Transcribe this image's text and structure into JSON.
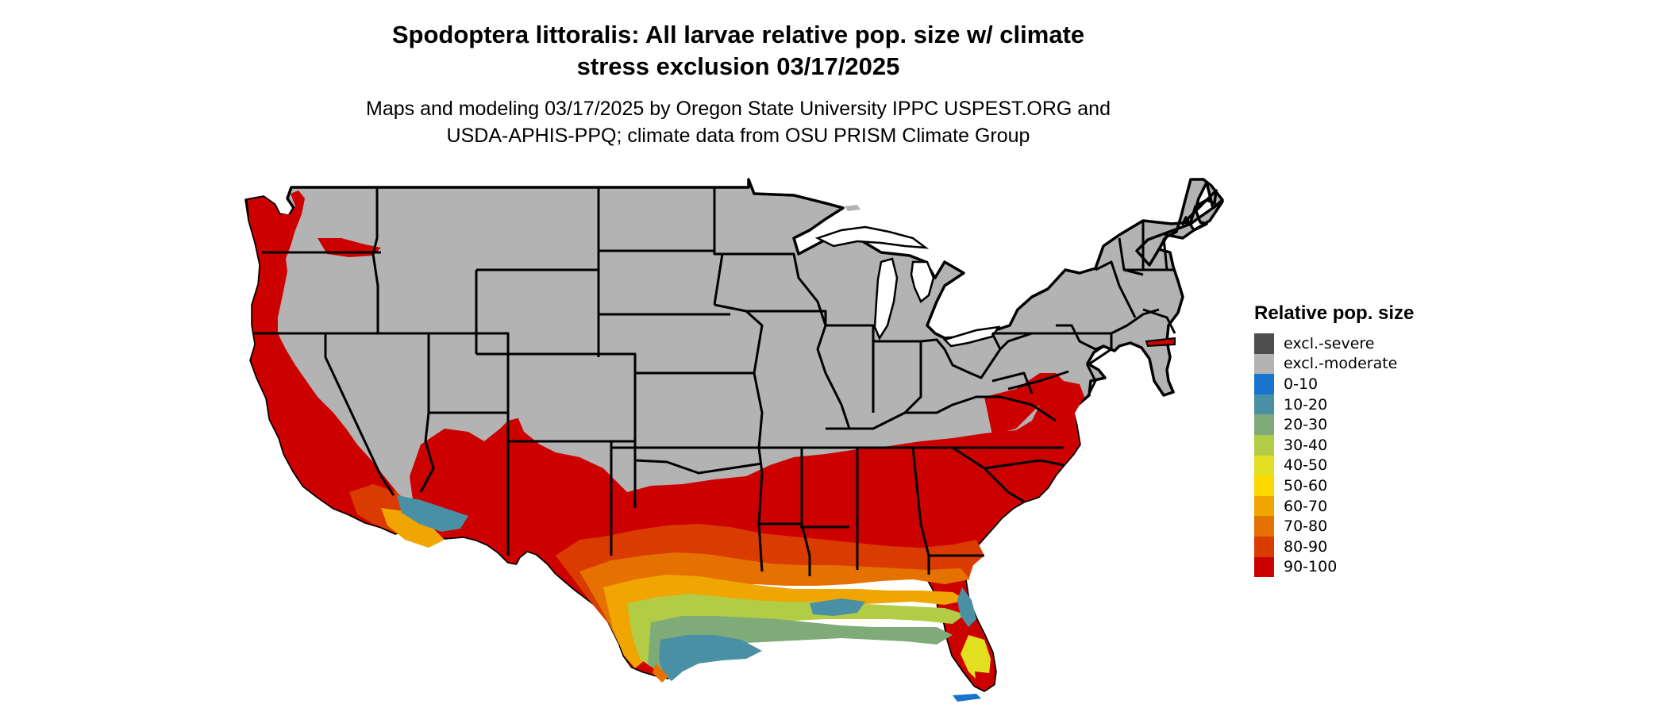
{
  "title_line1": "Spodoptera littoralis: All larvae relative pop. size w/ climate",
  "title_line2": "stress exclusion 03/17/2025",
  "subtitle_line1": "Maps and modeling 03/17/2025 by Oregon State University IPPC USPEST.ORG and",
  "subtitle_line2": "USDA-APHIS-PPQ; climate data from OSU PRISM Climate Group",
  "legend": {
    "title": "Relative pop. size",
    "items": [
      {
        "label": "excl.-severe",
        "color": "#4d4d4d"
      },
      {
        "label": "excl.-moderate",
        "color": "#b3b3b3"
      },
      {
        "label": "0-10",
        "color": "#1874cd"
      },
      {
        "label": "10-20",
        "color": "#4a90a4"
      },
      {
        "label": "20-30",
        "color": "#7fab78"
      },
      {
        "label": "30-40",
        "color": "#b2cc45"
      },
      {
        "label": "40-50",
        "color": "#e0e020"
      },
      {
        "label": "50-60",
        "color": "#ffd700"
      },
      {
        "label": "60-70",
        "color": "#f0a500"
      },
      {
        "label": "70-80",
        "color": "#e57200"
      },
      {
        "label": "80-90",
        "color": "#d93b00"
      },
      {
        "label": "90-100",
        "color": "#cd0000"
      }
    ]
  }
}
